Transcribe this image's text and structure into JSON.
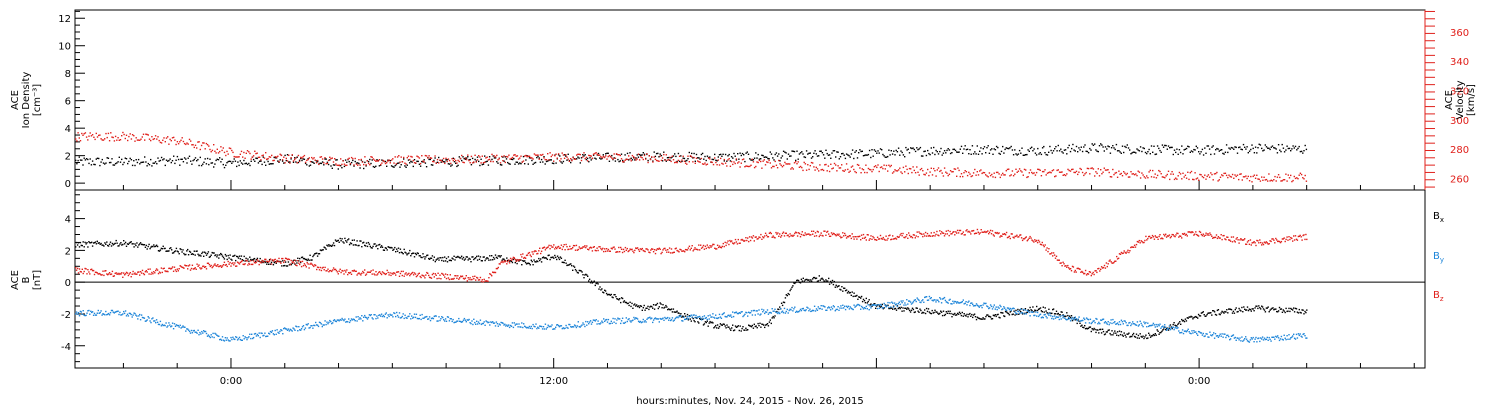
{
  "chart_data": [
    {
      "type": "scatter",
      "panel": "top",
      "ylabel_lines": [
        "ACE",
        "Ion Density",
        "[cm⁻³]"
      ],
      "y2label_lines": [
        "ACE",
        "Velocity",
        "[km/s]"
      ],
      "ylim": [
        -0.5,
        12.6
      ],
      "y2lim": [
        252,
        375
      ],
      "yticks": [
        "0",
        "2",
        "4",
        "6",
        "8",
        "10",
        "12"
      ],
      "y2ticks": [
        "260",
        "280",
        "300",
        "320",
        "340",
        "360"
      ],
      "colors": {
        "density": "#000000",
        "velocity": "#e0201b"
      },
      "series": [
        {
          "axis": "left",
          "x": [
            -4,
            -2,
            0,
            2,
            4,
            6,
            8,
            10,
            12,
            14,
            16,
            18,
            20,
            22,
            24,
            26,
            28,
            30,
            32,
            34,
            36,
            38,
            40
          ],
          "values": [
            1.6,
            1.7,
            1.5,
            1.8,
            1.4,
            1.5,
            1.6,
            1.7,
            1.8,
            1.9,
            2.0,
            1.9,
            2.0,
            2.1,
            2.2,
            2.4,
            2.5,
            2.4,
            2.6,
            2.5,
            2.4,
            2.6,
            2.5
          ]
        },
        {
          "axis": "right",
          "x": [
            -4,
            -2,
            0,
            2,
            4,
            6,
            8,
            10,
            12,
            14,
            16,
            18,
            20,
            22,
            24,
            26,
            28,
            30,
            32,
            34,
            36,
            38,
            40
          ],
          "values": [
            289,
            286,
            278,
            274,
            272,
            273,
            273,
            274,
            275,
            275,
            274,
            272,
            270,
            268,
            267,
            265,
            264,
            264,
            265,
            263,
            262,
            261,
            261
          ]
        }
      ]
    },
    {
      "type": "scatter",
      "panel": "bottom",
      "ylabel_lines": [
        "ACE",
        "B",
        "[nT]"
      ],
      "ylim": [
        -5.4,
        5.8
      ],
      "yticks": [
        "-4",
        "-2",
        "0",
        "2",
        "4"
      ],
      "xlabel": "hours:minutes, Nov. 24, 2015 - Nov. 26, 2015",
      "xlim": [
        -5.8,
        44.4
      ],
      "xticks": [
        "0:00",
        "12:00",
        "0:00"
      ],
      "series": [
        {
          "name": "Bx",
          "legend_main": "B",
          "legend_sub": "x",
          "color": "#000000",
          "x": [
            -5.8,
            -4,
            -2,
            0,
            2,
            3,
            4,
            6,
            7.8,
            8,
            9,
            10,
            11,
            12,
            13,
            14,
            15,
            15.5,
            16,
            17,
            18,
            19,
            20,
            21,
            22,
            24,
            26,
            28,
            30,
            31,
            32,
            34,
            36,
            38,
            40
          ],
          "values": [
            2.4,
            2.5,
            2.0,
            1.6,
            1.2,
            1.6,
            2.7,
            2.1,
            1.4,
            1.5,
            1.5,
            1.6,
            1.2,
            1.7,
            0.6,
            -0.7,
            -1.5,
            -1.6,
            -1.4,
            -2.2,
            -2.7,
            -2.9,
            -2.6,
            0.1,
            0.3,
            -1.5,
            -1.8,
            -2.2,
            -1.6,
            -2.0,
            -3.0,
            -3.4,
            -2.0,
            -1.6,
            -1.8
          ]
        },
        {
          "name": "By",
          "legend_main": "B",
          "legend_sub": "y",
          "color": "#1f86d9",
          "x": [
            -5.8,
            -4,
            -2,
            0,
            2,
            4,
            6,
            8,
            10,
            12,
            14,
            16,
            18,
            20,
            22,
            24,
            26,
            28,
            30,
            32,
            34,
            36,
            38,
            40
          ],
          "values": [
            -1.9,
            -1.9,
            -2.8,
            -3.6,
            -3.0,
            -2.4,
            -2.0,
            -2.3,
            -2.6,
            -2.8,
            -2.4,
            -2.3,
            -2.1,
            -1.8,
            -1.6,
            -1.5,
            -1.0,
            -1.4,
            -2.0,
            -2.4,
            -2.6,
            -3.2,
            -3.6,
            -3.3
          ]
        },
        {
          "name": "Bz",
          "legend_main": "B",
          "legend_sub": "z",
          "color": "#e0201b",
          "x": [
            -5.8,
            -4,
            -2,
            0,
            2,
            4,
            6,
            8,
            9.5,
            10,
            12,
            14,
            16,
            18,
            20,
            22,
            24,
            26,
            28,
            30,
            31,
            32,
            34,
            36,
            38,
            40
          ],
          "values": [
            0.8,
            0.5,
            0.9,
            1.2,
            1.4,
            0.7,
            0.6,
            0.4,
            0.2,
            1.2,
            2.3,
            2.1,
            2.0,
            2.3,
            3.0,
            3.1,
            2.8,
            3.1,
            3.2,
            2.7,
            1.0,
            0.5,
            2.8,
            3.1,
            2.5,
            2.9
          ]
        }
      ]
    }
  ]
}
